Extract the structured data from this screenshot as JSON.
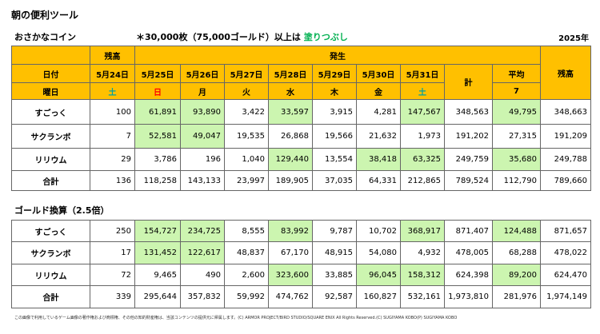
{
  "title": "朝の便利ツール",
  "subtitle": "おさかなコイン",
  "note": "＊30,000枚（75,000ゴールド）以上は",
  "note_highlight": "塗りつぶし",
  "note_highlight_color": "#00b050",
  "year": "2025年",
  "header_color": "#ffc000",
  "highlight_color": "#ccf5b0",
  "table1": {
    "header": {
      "balance_label": "残高",
      "occurrence_label": "発生",
      "date_label": "日付",
      "dates": [
        "5月24日",
        "5月25日",
        "5月26日",
        "5月27日",
        "5月28日",
        "5月29日",
        "5月30日",
        "5月31日"
      ],
      "weekday_label": "曜日",
      "weekdays": [
        "土",
        "日",
        "月",
        "火",
        "水",
        "木",
        "金",
        "土"
      ],
      "weekday_colors": [
        "#00a0a0",
        "#ff0000",
        null,
        null,
        null,
        null,
        null,
        "#00a0a0"
      ],
      "total_label": "計",
      "average_label": "平均",
      "average_days": "7",
      "end_balance_label": "残高"
    },
    "rows": [
      {
        "label": "すごっく",
        "cells": [
          "100",
          "61,891",
          "93,890",
          "3,422",
          "33,597",
          "3,915",
          "4,281",
          "147,567",
          "348,563",
          "49,795",
          "348,663"
        ],
        "highlight": [
          1,
          2,
          4,
          7,
          9
        ]
      },
      {
        "label": "サクランボ",
        "cells": [
          "7",
          "52,581",
          "49,047",
          "19,535",
          "26,868",
          "19,566",
          "21,632",
          "1,973",
          "191,202",
          "27,315",
          "191,209"
        ],
        "highlight": [
          1,
          2
        ]
      },
      {
        "label": "リリウム",
        "cells": [
          "29",
          "3,786",
          "196",
          "1,040",
          "129,440",
          "13,554",
          "38,418",
          "63,325",
          "249,759",
          "35,680",
          "249,788"
        ],
        "highlight": [
          4,
          6,
          7,
          9
        ]
      },
      {
        "label": "合計",
        "cells": [
          "136",
          "118,258",
          "143,133",
          "23,997",
          "189,905",
          "37,035",
          "64,331",
          "212,865",
          "789,524",
          "112,790",
          "789,660"
        ],
        "highlight": []
      }
    ]
  },
  "section2_title": "ゴールド換算（2.5倍）",
  "table2": {
    "rows": [
      {
        "label": "すごっく",
        "cells": [
          "250",
          "154,727",
          "234,725",
          "8,555",
          "83,992",
          "9,787",
          "10,702",
          "368,917",
          "871,407",
          "124,488",
          "871,657"
        ],
        "highlight": [
          1,
          2,
          4,
          7,
          9
        ]
      },
      {
        "label": "サクランボ",
        "cells": [
          "17",
          "131,452",
          "122,617",
          "48,837",
          "67,170",
          "48,915",
          "54,080",
          "4,932",
          "478,005",
          "68,288",
          "478,022"
        ],
        "highlight": [
          1,
          2
        ]
      },
      {
        "label": "リリウム",
        "cells": [
          "72",
          "9,465",
          "490",
          "2,600",
          "323,600",
          "33,885",
          "96,045",
          "158,312",
          "624,398",
          "89,200",
          "624,470"
        ],
        "highlight": [
          4,
          6,
          7,
          9
        ]
      },
      {
        "label": "合計",
        "cells": [
          "339",
          "295,644",
          "357,832",
          "59,992",
          "474,762",
          "92,587",
          "160,827",
          "532,161",
          "1,973,810",
          "281,976",
          "1,974,149"
        ],
        "highlight": []
      }
    ]
  },
  "footer": "この画像で利用しているゲーム画像の著作権および商標権、その他の知的財産権は、当該コンテンツの提供元に帰属します。(C) ARMOR PROJECT/BIRD STUDIO/SQUARE ENIX All Rights Reserved.(C) SUGIYAMA KOBO(P) SUGIYAMA KOBO"
}
